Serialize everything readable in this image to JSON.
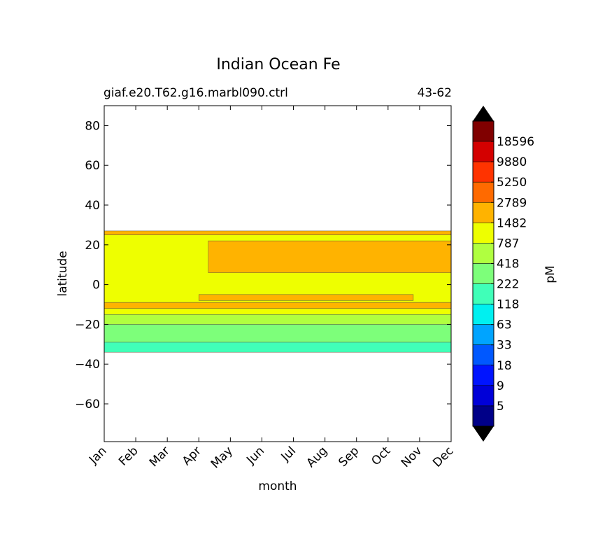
{
  "chart_data": {
    "type": "heatmap",
    "title": "Indian Ocean Fe",
    "subtitle_left": "giaf.e20.T62.g16.marbl090.ctrl",
    "subtitle_right": "43-62",
    "xlabel": "month",
    "ylabel": "latitude",
    "x_categories": [
      "Jan",
      "Feb",
      "Mar",
      "Apr",
      "May",
      "Jun",
      "Jul",
      "Aug",
      "Sep",
      "Oct",
      "Nov",
      "Dec"
    ],
    "ylim": [
      -79,
      90
    ],
    "y_ticks": [
      80,
      60,
      40,
      20,
      0,
      -20,
      -40,
      -60
    ],
    "y_tick_labels": [
      "80",
      "60",
      "40",
      "20",
      "0",
      "−20",
      "−40",
      "−60"
    ],
    "colorbar": {
      "label": "pM",
      "tick_labels": [
        "18596",
        "9880",
        "5250",
        "2789",
        "1482",
        "787",
        "418",
        "222",
        "118",
        "63",
        "33",
        "18",
        "9",
        "5"
      ],
      "colors": [
        "#800000",
        "#d40000",
        "#ff3300",
        "#ff6a00",
        "#ffb300",
        "#eeff00",
        "#b0ff40",
        "#7dff7a",
        "#40ffb8",
        "#00f0f0",
        "#00a4ff",
        "#0058ff",
        "#0014ff",
        "#0000d8",
        "#000088"
      ],
      "extend_color": "#000000"
    },
    "bands": [
      {
        "lat_top": 27,
        "lat_bottom": 25,
        "value_class": "1482-2789",
        "color": "#ffb300",
        "x_extent": [
          0,
          11
        ]
      },
      {
        "lat_top": 25,
        "lat_bottom": -9,
        "value_class": "787-1482",
        "color": "#eeff00",
        "x_extent": [
          0,
          11
        ]
      },
      {
        "lat_top": 22,
        "lat_bottom": 6,
        "value_class": "1482-2789",
        "color": "#ffb300",
        "x_extent": [
          3.3,
          11
        ]
      },
      {
        "lat_top": -5,
        "lat_bottom": -8,
        "value_class": "1482-2789",
        "color": "#ffb300",
        "x_extent": [
          3,
          9.8
        ]
      },
      {
        "lat_top": -9,
        "lat_bottom": -12,
        "value_class": "1482-2789",
        "color": "#ffb300",
        "x_extent": [
          0,
          11
        ]
      },
      {
        "lat_top": -12,
        "lat_bottom": -15,
        "value_class": "787-1482",
        "color": "#eeff00",
        "x_extent": [
          0,
          11
        ]
      },
      {
        "lat_top": -15,
        "lat_bottom": -20,
        "value_class": "418-787",
        "color": "#b0ff40",
        "x_extent": [
          0,
          11
        ]
      },
      {
        "lat_top": -20,
        "lat_bottom": -34,
        "value_class": "222-418",
        "color": "#7dff7a",
        "x_extent": [
          0,
          11
        ]
      },
      {
        "lat_top": -29,
        "lat_bottom": -34,
        "value_class": "118-222",
        "color": "#40ffb8",
        "x_extent": [
          0,
          11
        ]
      }
    ]
  }
}
